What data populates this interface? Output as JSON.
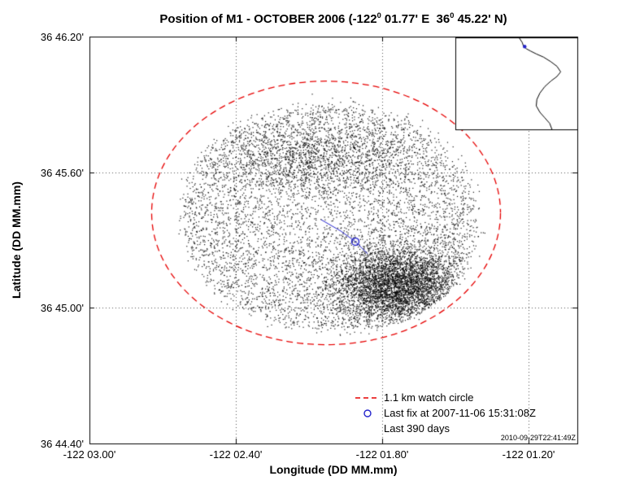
{
  "figure": {
    "title": {
      "pre": "Position of M1 - OCTOBER 2006 (-122",
      "deg1": "0",
      "mid": " 01.77' E  36",
      "deg2": "0",
      "post": " 45.22' N)"
    },
    "timestamp": "2010-09-29T22:41:49Z"
  },
  "legend": {
    "items": [
      {
        "label": "1.1 km watch circle",
        "marker": "red-dashed-line"
      },
      {
        "label": "Last fix at 2007-11-06 15:31:08Z",
        "marker": "blue-circle"
      },
      {
        "label": "Last 390 days",
        "marker": "none"
      }
    ]
  },
  "colors": {
    "points": "#000000",
    "watch_circle": "#e60000",
    "last_fix": "#2323cc",
    "grid": "#555555",
    "axis": "#000000"
  },
  "chart_data": {
    "type": "scatter",
    "title": "Position of M1 - OCTOBER 2006 (-122deg 01.77' E  36deg 45.22' N)",
    "xlabel": "Longitude (DD MM.mm)",
    "ylabel": "Latitude (DD MM.mm)",
    "x_units": "longitude minutes west of -122 deg",
    "y_units": "latitude minutes north of 36 deg",
    "x_range": [
      3.0,
      1.0
    ],
    "y_range": [
      44.4,
      46.2
    ],
    "grid": "dotted",
    "x_ticks": [
      {
        "label": "-122 03.00'",
        "value": 3.0
      },
      {
        "label": "-122 02.40'",
        "value": 2.4
      },
      {
        "label": "-122 01.80'",
        "value": 1.8
      },
      {
        "label": "-122 01.20'",
        "value": 1.2
      }
    ],
    "y_ticks": [
      {
        "label": "36 44.40'",
        "value": 44.4
      },
      {
        "label": "36 45.00'",
        "value": 45.0
      },
      {
        "label": "36 45.60'",
        "value": 45.6
      },
      {
        "label": "36 46.20'",
        "value": 46.2
      }
    ],
    "watch_circle": {
      "center_lon_min": 2.03,
      "center_lat_min": 45.42,
      "radius_km": 1.1,
      "rx_min": 0.715,
      "ry_min": 0.583
    },
    "last_fix": {
      "lon_min": 1.91,
      "lat_min": 45.293,
      "time": "2007-11-06 15:31:08Z"
    },
    "track": [
      [
        2.05,
        45.39
      ],
      [
        1.97,
        45.34
      ],
      [
        1.91,
        45.293
      ],
      [
        1.86,
        45.24
      ]
    ],
    "scatter": {
      "seed": 42,
      "point_size": 1.2,
      "description": "GPS position fixes over last 390 days, dense cluster southeast of center",
      "clip": {
        "cx": 2.02,
        "cy": 45.4,
        "rx": 0.635,
        "ry": 0.525
      },
      "components": [
        {
          "kind": "uniform_ellipse",
          "n": 5200,
          "cx": 2.02,
          "cy": 45.4,
          "rx": 0.6,
          "ry": 0.495,
          "pow": 0.46,
          "jitter": 0.015,
          "clip_scale": 1.0
        },
        {
          "kind": "gaussian",
          "n": 4200,
          "cx": 1.74,
          "cy": 45.1,
          "sx": 0.13,
          "sy": 0.085,
          "clip_scale": 1.0
        },
        {
          "kind": "gaussian",
          "n": 1400,
          "cx": 2.1,
          "cy": 45.66,
          "sx": 0.22,
          "sy": 0.085,
          "clip_scale": 1.0
        },
        {
          "kind": "uniform_ellipse",
          "n": 260,
          "cx": 2.02,
          "cy": 45.4,
          "rx": 0.648,
          "ry": 0.532,
          "pow": 0.22,
          "jitter": 0.012,
          "clip_scale": 1.06
        }
      ]
    },
    "inset_map": {
      "region": "Monterey Bay coastline",
      "coast": [
        [
          0.52,
          0.0
        ],
        [
          0.545,
          0.05
        ],
        [
          0.555,
          0.09
        ],
        [
          0.58,
          0.12
        ],
        [
          0.615,
          0.145
        ],
        [
          0.66,
          0.175
        ],
        [
          0.72,
          0.21
        ],
        [
          0.78,
          0.26
        ],
        [
          0.83,
          0.31
        ],
        [
          0.86,
          0.37
        ],
        [
          0.83,
          0.42
        ],
        [
          0.78,
          0.47
        ],
        [
          0.73,
          0.53
        ],
        [
          0.69,
          0.6
        ],
        [
          0.665,
          0.67
        ],
        [
          0.66,
          0.74
        ],
        [
          0.69,
          0.81
        ],
        [
          0.73,
          0.87
        ],
        [
          0.77,
          0.93
        ],
        [
          0.79,
          1.0
        ]
      ],
      "marker": {
        "x": 0.565,
        "y": 0.095
      }
    }
  }
}
